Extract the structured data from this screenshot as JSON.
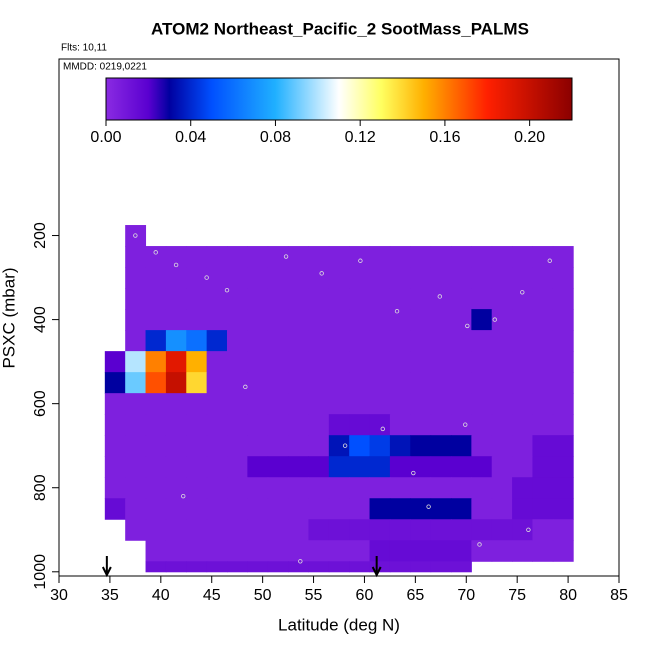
{
  "chart_data": {
    "type": "heatmap",
    "title": "ATOM2 Northeast_Pacific_2 SootMass_PALMS",
    "subtitle": "Flts: 10,11",
    "annotation": "MMDD: 0219,0221",
    "x_label": "Latitude (deg N)",
    "y_label": "PSXC (mbar)",
    "xlim": [
      30,
      85
    ],
    "xticks": [
      30,
      35,
      40,
      45,
      50,
      55,
      60,
      65,
      70,
      75,
      80,
      85
    ],
    "ylim": [
      1010,
      -220
    ],
    "yticks": [
      200,
      400,
      600,
      800,
      1000
    ],
    "x_edges": [
      34.5,
      36.5,
      38.5,
      40.5,
      42.5,
      44.5,
      46.5,
      48.5,
      50.5,
      52.5,
      54.5,
      56.5,
      58.5,
      60.5,
      62.5,
      64.5,
      66.5,
      68.5,
      70.5,
      72.5,
      74.5,
      76.5,
      78.5,
      80.5
    ],
    "y_edges": [
      175,
      225,
      275,
      325,
      375,
      425,
      475,
      525,
      575,
      625,
      675,
      725,
      775,
      825,
      875,
      925,
      975,
      1000
    ],
    "values": [
      [
        null,
        0.005,
        null,
        null,
        null,
        null,
        null,
        null,
        null,
        null,
        null,
        null,
        null,
        null,
        null,
        null,
        null,
        null,
        null,
        null,
        null,
        null,
        null
      ],
      [
        null,
        0.005,
        0.005,
        0.005,
        0.005,
        0.005,
        0.005,
        0.005,
        0.005,
        0.005,
        0.005,
        0.005,
        0.005,
        0.005,
        0.005,
        0.005,
        0.005,
        0.005,
        0.005,
        0.005,
        0.005,
        0.005,
        0.005
      ],
      [
        null,
        0.005,
        0.005,
        0.005,
        0.005,
        0.005,
        0.005,
        0.005,
        0.005,
        0.005,
        0.005,
        0.005,
        0.005,
        0.005,
        0.005,
        0.005,
        0.005,
        0.005,
        0.005,
        0.005,
        0.005,
        0.005,
        0.005
      ],
      [
        null,
        0.005,
        0.005,
        0.005,
        0.005,
        0.005,
        0.005,
        0.005,
        0.005,
        0.005,
        0.005,
        0.005,
        0.005,
        0.005,
        0.005,
        0.005,
        0.005,
        0.005,
        0.005,
        0.005,
        0.005,
        0.005,
        0.005
      ],
      [
        null,
        0.005,
        0.005,
        0.005,
        0.005,
        0.005,
        0.005,
        0.005,
        0.005,
        0.005,
        0.005,
        0.005,
        0.005,
        0.005,
        0.005,
        0.005,
        0.005,
        0.005,
        0.03,
        0.005,
        0.005,
        0.005,
        0.005
      ],
      [
        null,
        0.005,
        0.04,
        0.07,
        0.06,
        0.04,
        0.005,
        0.005,
        0.005,
        0.005,
        0.005,
        0.005,
        0.005,
        0.005,
        0.005,
        0.005,
        0.005,
        0.005,
        0.005,
        0.005,
        0.005,
        0.005,
        0.005
      ],
      [
        0.02,
        0.1,
        0.16,
        0.19,
        0.15,
        0.005,
        0.005,
        0.005,
        0.005,
        0.005,
        0.005,
        0.005,
        0.005,
        0.005,
        0.005,
        0.005,
        0.005,
        0.005,
        0.005,
        0.005,
        0.005,
        0.005,
        0.005
      ],
      [
        0.03,
        0.09,
        0.17,
        0.2,
        0.14,
        0.005,
        0.005,
        0.005,
        0.005,
        0.005,
        0.005,
        0.005,
        0.005,
        0.005,
        0.005,
        0.005,
        0.005,
        0.005,
        0.005,
        0.005,
        0.005,
        0.005,
        0.005
      ],
      [
        0.005,
        0.005,
        0.005,
        0.005,
        0.005,
        0.005,
        0.005,
        0.005,
        0.005,
        0.005,
        0.005,
        0.005,
        0.005,
        0.005,
        0.005,
        0.005,
        0.005,
        0.005,
        0.005,
        0.005,
        0.005,
        0.005,
        0.005
      ],
      [
        0.005,
        0.005,
        0.005,
        0.005,
        0.005,
        0.005,
        0.005,
        0.005,
        0.005,
        0.005,
        0.005,
        0.015,
        0.015,
        0.015,
        0.005,
        0.005,
        0.005,
        0.005,
        0.005,
        0.005,
        0.005,
        0.005,
        0.005
      ],
      [
        0.005,
        0.005,
        0.005,
        0.005,
        0.005,
        0.005,
        0.005,
        0.005,
        0.005,
        0.005,
        0.005,
        0.035,
        0.05,
        0.045,
        0.035,
        0.03,
        0.03,
        0.03,
        0.005,
        0.005,
        0.005,
        0.015,
        0.015
      ],
      [
        0.005,
        0.005,
        0.005,
        0.005,
        0.005,
        0.005,
        0.005,
        0.02,
        0.02,
        0.02,
        0.02,
        0.04,
        0.04,
        0.04,
        0.02,
        0.02,
        0.02,
        0.02,
        0.02,
        0.005,
        0.005,
        0.015,
        0.015
      ],
      [
        0.005,
        0.005,
        0.005,
        0.005,
        0.005,
        0.005,
        0.005,
        0.005,
        0.005,
        0.005,
        0.005,
        0.005,
        0.005,
        0.005,
        0.005,
        0.005,
        0.005,
        0.005,
        0.005,
        0.005,
        0.015,
        0.015,
        0.015
      ],
      [
        0.015,
        0.005,
        0.005,
        0.005,
        0.005,
        0.005,
        0.005,
        0.005,
        0.005,
        0.005,
        0.005,
        0.005,
        0.005,
        0.03,
        0.03,
        0.03,
        0.03,
        0.03,
        0.005,
        0.005,
        0.015,
        0.015,
        0.015
      ],
      [
        null,
        0.005,
        0.005,
        0.005,
        0.005,
        0.005,
        0.005,
        0.005,
        0.005,
        0.005,
        0.012,
        0.012,
        0.012,
        0.012,
        0.012,
        0.012,
        0.012,
        0.012,
        0.012,
        0.012,
        0.012,
        0.005,
        0.005
      ],
      [
        null,
        null,
        0.005,
        0.005,
        0.005,
        0.005,
        0.005,
        0.005,
        0.005,
        0.005,
        0.005,
        0.005,
        0.005,
        0.015,
        0.015,
        0.015,
        0.015,
        0.015,
        0.005,
        0.005,
        0.005,
        0.005,
        0.005
      ],
      [
        null,
        null,
        0.012,
        0.012,
        0.012,
        0.012,
        0.012,
        0.012,
        0.012,
        0.012,
        0.012,
        0.012,
        0.012,
        0.012,
        0.012,
        0.012,
        0.012,
        0.012,
        null,
        null,
        null,
        null,
        null
      ]
    ],
    "colorscale": [
      [
        0,
        "#8a2be2"
      ],
      [
        0.02,
        "#5a00d0"
      ],
      [
        0.03,
        "#0000a0"
      ],
      [
        0.05,
        "#0050ff"
      ],
      [
        0.08,
        "#20b0ff"
      ],
      [
        0.11,
        "#ffffff"
      ],
      [
        0.13,
        "#ffff60"
      ],
      [
        0.15,
        "#ffb000"
      ],
      [
        0.18,
        "#ff2000"
      ],
      [
        0.22,
        "#8b0000"
      ]
    ],
    "colorbar_lim": [
      0,
      0.22
    ],
    "colorbar_ticks": [
      {
        "value": 0,
        "label": "0.00"
      },
      {
        "value": 0.04,
        "label": "0.04"
      },
      {
        "value": 0.08,
        "label": "0.08"
      },
      {
        "value": 0.12,
        "label": "0.12"
      },
      {
        "value": 0.16,
        "label": "0.16"
      },
      {
        "value": 0.2,
        "label": "0.20"
      }
    ],
    "samples": {
      "x": [
        37.5,
        39.5,
        41.5,
        44.5,
        46.5,
        52.3,
        55.8,
        59.6,
        63.2,
        67.4,
        70.1,
        72.8,
        75.5,
        78.2,
        48.3,
        58.1,
        64.8,
        69.9,
        76.1,
        42.2,
        53.7,
        66.3,
        71.3,
        61.8
      ],
      "y": [
        200,
        240,
        270,
        300,
        330,
        250,
        290,
        260,
        380,
        345,
        415,
        400,
        335,
        260,
        560,
        700,
        765,
        650,
        900,
        820,
        975,
        845,
        935,
        660
      ]
    },
    "arrows_x": [
      34.7,
      61.2
    ]
  }
}
